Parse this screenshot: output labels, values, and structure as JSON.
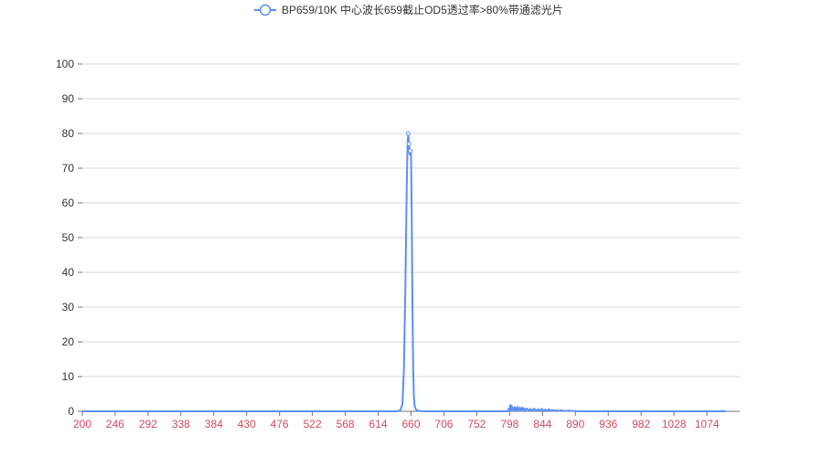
{
  "chart_data": {
    "type": "line",
    "legend": {
      "position": "top-center"
    },
    "series": [
      {
        "name": "BP659/10K 中心波长659截止OD5透过率>80%带通滤光片",
        "color": "#5b8ff9",
        "x": [
          200,
          600,
          640,
          645,
          648,
          650,
          652,
          654,
          655,
          656,
          657,
          658,
          659,
          660,
          661,
          662,
          663,
          664,
          665,
          667,
          670,
          680,
          795,
          797,
          798,
          799,
          800,
          801,
          803,
          805,
          806,
          807,
          808,
          809,
          810,
          812,
          814,
          815,
          816,
          818,
          820,
          822,
          825,
          827,
          830,
          832,
          835,
          838,
          840,
          843,
          845,
          848,
          850,
          853,
          855,
          858,
          860,
          863,
          866,
          870,
          875,
          880,
          890,
          900,
          1100
        ],
        "y": [
          0,
          0,
          0,
          0.3,
          2,
          12,
          35,
          65,
          76,
          80,
          77,
          74,
          75,
          74,
          55,
          30,
          12,
          4,
          1.5,
          0.5,
          0.1,
          0,
          0,
          0.8,
          0.2,
          1.8,
          0.3,
          1.5,
          0.2,
          1.2,
          0.3,
          0.9,
          0.2,
          1.3,
          0.2,
          1.0,
          0.2,
          1.1,
          0.2,
          0.9,
          0.2,
          0.8,
          0.2,
          0.7,
          0.1,
          0.8,
          0.2,
          0.6,
          0.1,
          0.7,
          0.1,
          0.5,
          0.1,
          0.6,
          0.1,
          0.4,
          0.1,
          0.3,
          0.1,
          0.3,
          0.05,
          0.2,
          0.05,
          0,
          0
        ],
        "points": [
          [
            656,
            80
          ],
          [
            657,
            77
          ],
          [
            659,
            75
          ]
        ]
      }
    ],
    "x_ticks": [
      "200",
      "246",
      "292",
      "338",
      "384",
      "430",
      "476",
      "522",
      "568",
      "614",
      "660",
      "706",
      "752",
      "798",
      "844",
      "890",
      "936",
      "982",
      "1028",
      "1074"
    ],
    "y_ticks": [
      "0",
      "10",
      "20",
      "30",
      "40",
      "50",
      "60",
      "70",
      "80",
      "90",
      "100"
    ],
    "xlim": [
      200,
      1120
    ],
    "ylim": [
      0,
      100
    ],
    "grid": {
      "y": true,
      "x": false
    },
    "colors": {
      "axis": "#6e7079",
      "grid": "#d9d9d9",
      "xtick_text": "#d14a61",
      "ytick_text": "#333333"
    }
  }
}
